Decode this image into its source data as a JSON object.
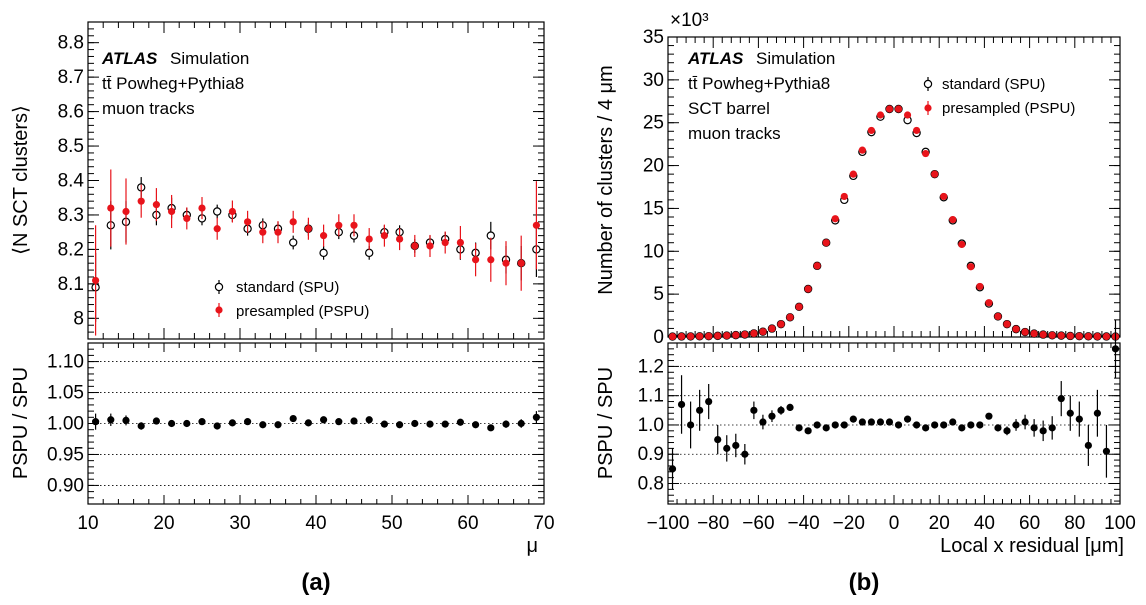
{
  "panel_labels": {
    "a": "(a)",
    "b": "(b)"
  },
  "annotations": {
    "a": {
      "atlas": "ATLAS",
      "simulation": "Simulation",
      "lines": [
        "tt̄ Powheg+Pythia8",
        "muon tracks"
      ]
    },
    "b": {
      "atlas": "ATLAS",
      "simulation": "Simulation",
      "lines": [
        "tt̄ Powheg+Pythia8",
        "SCT barrel",
        "muon tracks"
      ]
    }
  },
  "colors": {
    "standard": "#000000",
    "presampled": "#e8141b",
    "ratio": "#000000"
  },
  "chart_data": [
    {
      "type": "scatter",
      "panel": "a-top",
      "ylabel": "⟨N SCT clusters⟩",
      "xlim": [
        10,
        70
      ],
      "ylim": [
        7.94,
        8.86
      ],
      "yticks": [
        8.0,
        8.1,
        8.2,
        8.3,
        8.4,
        8.5,
        8.6,
        8.7,
        8.8
      ],
      "ytick_labels": [
        "8",
        "8.1",
        "8.2",
        "8.3",
        "8.4",
        "8.5",
        "8.6",
        "8.7",
        "8.8"
      ],
      "legend": {
        "position": "bottom-center",
        "entries": [
          "standard (SPU)",
          "presampled (PSPU)"
        ]
      },
      "x": [
        11,
        13,
        15,
        17,
        19,
        21,
        23,
        25,
        27,
        29,
        31,
        33,
        35,
        37,
        39,
        41,
        43,
        45,
        47,
        49,
        51,
        53,
        55,
        57,
        59,
        61,
        63,
        65,
        67,
        69
      ],
      "series": [
        {
          "name": "standard (SPU)",
          "marker": "open-circle",
          "values": [
            8.09,
            8.27,
            8.28,
            8.38,
            8.3,
            8.32,
            8.3,
            8.29,
            8.31,
            8.3,
            8.26,
            8.27,
            8.26,
            8.22,
            8.26,
            8.19,
            8.25,
            8.24,
            8.19,
            8.25,
            8.25,
            8.21,
            8.22,
            8.23,
            8.2,
            8.19,
            8.24,
            8.17,
            8.16,
            8.2
          ],
          "errors": [
            0.1,
            0.07,
            0.06,
            0.03,
            0.03,
            0.03,
            0.02,
            0.02,
            0.02,
            0.02,
            0.02,
            0.02,
            0.02,
            0.02,
            0.02,
            0.02,
            0.02,
            0.02,
            0.02,
            0.02,
            0.02,
            0.02,
            0.02,
            0.02,
            0.03,
            0.03,
            0.04,
            0.04,
            0.05,
            0.08
          ]
        },
        {
          "name": "presampled (PSPU)",
          "marker": "filled-circle",
          "values": [
            8.11,
            8.32,
            8.31,
            8.34,
            8.33,
            8.31,
            8.29,
            8.32,
            8.26,
            8.31,
            8.28,
            8.25,
            8.25,
            8.28,
            8.26,
            8.24,
            8.27,
            8.27,
            8.23,
            8.24,
            8.23,
            8.21,
            8.21,
            8.22,
            8.22,
            8.17,
            8.17,
            8.16,
            8.16,
            8.27
          ]
        }
      ]
    },
    {
      "type": "scatter",
      "panel": "a-ratio",
      "xlabel": "μ",
      "ylabel": "PSPU / SPU",
      "xlim": [
        10,
        70
      ],
      "ylim": [
        0.87,
        1.13
      ],
      "xticks": [
        10,
        20,
        30,
        40,
        50,
        60,
        70
      ],
      "xtick_labels": [
        "10",
        "20",
        "30",
        "40",
        "50",
        "60",
        "70"
      ],
      "yticks": [
        0.9,
        0.95,
        1.0,
        1.05,
        1.1
      ],
      "ytick_labels": [
        "0.90",
        "0.95",
        "1.00",
        "1.05",
        "1.10"
      ],
      "grid": "horizontal-dotted",
      "x": [
        11,
        13,
        15,
        17,
        19,
        21,
        23,
        25,
        27,
        29,
        31,
        33,
        35,
        37,
        39,
        41,
        43,
        45,
        47,
        49,
        51,
        53,
        55,
        57,
        59,
        61,
        63,
        65,
        67,
        69
      ],
      "values": [
        1.003,
        1.006,
        1.005,
        0.996,
        1.004,
        1.0,
        1.0,
        1.003,
        0.996,
        1.001,
        1.003,
        0.998,
        0.998,
        1.008,
        1.001,
        1.006,
        1.003,
        1.004,
        1.006,
        0.999,
        0.998,
        1.0,
        0.999,
        0.999,
        1.002,
        0.998,
        0.993,
        0.999,
        1.0,
        1.01
      ],
      "errors": [
        0.013,
        0.01,
        0.008,
        0.006,
        0.005,
        0.004,
        0.004,
        0.004,
        0.004,
        0.004,
        0.004,
        0.004,
        0.004,
        0.004,
        0.004,
        0.004,
        0.004,
        0.004,
        0.004,
        0.004,
        0.004,
        0.004,
        0.004,
        0.004,
        0.004,
        0.004,
        0.005,
        0.006,
        0.007,
        0.01
      ]
    },
    {
      "type": "scatter",
      "panel": "b-top",
      "ylabel": "Number of clusters / 4 μm",
      "multiplier": "×10³",
      "xlim": [
        -100,
        100
      ],
      "ylim": [
        0,
        35
      ],
      "yticks": [
        0,
        5,
        10,
        15,
        20,
        25,
        30,
        35
      ],
      "ytick_labels": [
        "0",
        "5",
        "10",
        "15",
        "20",
        "25",
        "30",
        "35"
      ],
      "legend": {
        "position": "top-right",
        "entries": [
          "standard (SPU)",
          "presampled (PSPU)"
        ]
      },
      "x": [
        -98,
        -94,
        -90,
        -86,
        -82,
        -78,
        -74,
        -70,
        -66,
        -62,
        -58,
        -54,
        -50,
        -46,
        -42,
        -38,
        -34,
        -30,
        -26,
        -22,
        -18,
        -14,
        -10,
        -6,
        -2,
        2,
        6,
        10,
        14,
        18,
        22,
        26,
        30,
        34,
        38,
        42,
        46,
        50,
        54,
        58,
        62,
        66,
        70,
        74,
        78,
        82,
        86,
        90,
        94,
        98
      ],
      "series": [
        {
          "name": "standard (SPU)",
          "marker": "open-circle",
          "values": [
            0.05,
            0.06,
            0.07,
            0.08,
            0.1,
            0.13,
            0.17,
            0.22,
            0.29,
            0.42,
            0.62,
            0.98,
            1.5,
            2.3,
            3.52,
            5.6,
            8.3,
            11.0,
            13.6,
            16.0,
            18.8,
            21.6,
            23.9,
            25.7,
            26.6,
            26.6,
            25.3,
            23.8,
            21.6,
            19.0,
            16.3,
            13.6,
            10.9,
            8.3,
            5.8,
            3.9,
            2.4,
            1.5,
            0.92,
            0.58,
            0.4,
            0.28,
            0.2,
            0.16,
            0.12,
            0.1,
            0.08,
            0.07,
            0.06,
            0.05
          ]
        },
        {
          "name": "presampled (PSPU)",
          "marker": "filled-circle",
          "values": [
            0.05,
            0.06,
            0.07,
            0.08,
            0.1,
            0.13,
            0.17,
            0.22,
            0.29,
            0.42,
            0.62,
            0.98,
            1.5,
            2.3,
            3.52,
            5.6,
            8.3,
            11.0,
            13.8,
            16.4,
            19.0,
            21.8,
            24.1,
            25.9,
            26.6,
            26.6,
            25.9,
            24.1,
            21.4,
            19.0,
            16.4,
            13.7,
            10.8,
            8.2,
            5.9,
            4.0,
            2.4,
            1.5,
            0.92,
            0.58,
            0.4,
            0.28,
            0.2,
            0.16,
            0.12,
            0.1,
            0.08,
            0.07,
            0.06,
            0.05
          ]
        }
      ]
    },
    {
      "type": "scatter",
      "panel": "b-ratio",
      "xlabel": "Local x residual [μm]",
      "ylabel": "PSPU / SPU",
      "xlim": [
        -100,
        100
      ],
      "ylim": [
        0.73,
        1.28
      ],
      "xticks": [
        -100,
        -80,
        -60,
        -40,
        -20,
        0,
        20,
        40,
        60,
        80,
        100
      ],
      "xtick_labels": [
        "−100",
        "−80",
        "−60",
        "−40",
        "−20",
        "0",
        "20",
        "40",
        "60",
        "80",
        "100"
      ],
      "yticks": [
        0.8,
        0.9,
        1.0,
        1.1,
        1.2
      ],
      "ytick_labels": [
        "0.8",
        "0.9",
        "1.0",
        "1.1",
        "1.2"
      ],
      "grid": "horizontal-dotted",
      "x": [
        -98,
        -94,
        -90,
        -86,
        -82,
        -78,
        -74,
        -70,
        -66,
        -62,
        -58,
        -54,
        -50,
        -46,
        -42,
        -38,
        -34,
        -30,
        -26,
        -22,
        -18,
        -14,
        -10,
        -6,
        -2,
        2,
        6,
        10,
        14,
        18,
        22,
        26,
        30,
        34,
        38,
        42,
        46,
        50,
        54,
        58,
        62,
        66,
        70,
        74,
        78,
        82,
        86,
        90,
        94,
        98
      ],
      "values": [
        0.85,
        1.07,
        1.0,
        1.05,
        1.08,
        0.95,
        0.92,
        0.93,
        0.9,
        1.05,
        1.01,
        1.03,
        1.05,
        1.06,
        0.99,
        0.98,
        1.0,
        0.99,
        1.0,
        1.0,
        1.02,
        1.01,
        1.01,
        1.01,
        1.01,
        1.0,
        1.02,
        1.0,
        0.99,
        1.0,
        1.0,
        1.01,
        0.99,
        1.0,
        1.0,
        1.03,
        0.99,
        0.98,
        1.0,
        1.01,
        0.99,
        0.98,
        0.99,
        1.09,
        1.04,
        1.02,
        0.93,
        1.04,
        0.91,
        1.26
      ],
      "errors": [
        0.07,
        0.1,
        0.08,
        0.07,
        0.06,
        0.05,
        0.045,
        0.04,
        0.035,
        0.03,
        0.025,
        0.02,
        0.015,
        0.012,
        0.01,
        0.008,
        0.007,
        0.006,
        0.005,
        0.005,
        0.004,
        0.004,
        0.004,
        0.004,
        0.004,
        0.004,
        0.004,
        0.004,
        0.004,
        0.004,
        0.005,
        0.005,
        0.006,
        0.007,
        0.008,
        0.01,
        0.012,
        0.015,
        0.02,
        0.025,
        0.03,
        0.035,
        0.04,
        0.06,
        0.06,
        0.06,
        0.07,
        0.08,
        0.09,
        0.1
      ]
    }
  ]
}
